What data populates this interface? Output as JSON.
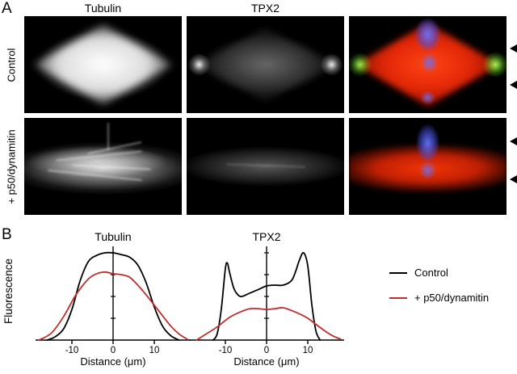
{
  "panel_a": {
    "label": "A",
    "column_titles": [
      "Tubulin",
      "TPX2"
    ],
    "row_labels": [
      "Control",
      "+ p50/dynamitin"
    ]
  },
  "panel_b": {
    "label": "B",
    "ylabel": "Fluorescence",
    "plot_titles": [
      "Tubulin",
      "TPX2"
    ],
    "xlabel": "Distance (μm)",
    "legend": [
      {
        "label": "Control",
        "color": "#000000"
      },
      {
        "label": "+ p50/dynamitin",
        "color": "#c22c2c"
      }
    ]
  },
  "chart_data": [
    {
      "type": "line",
      "title": "Tubulin",
      "xlabel": "Distance (μm)",
      "ylabel": "Fluorescence",
      "xlim": [
        -20,
        20
      ],
      "ylim": [
        0,
        1
      ],
      "x_ticks": [
        -10,
        0,
        10
      ],
      "grid": false,
      "legend_position": "right",
      "series": [
        {
          "name": "Control",
          "color": "#000000",
          "points": [
            [
              -16,
              0
            ],
            [
              -14,
              0.04
            ],
            [
              -12,
              0.13
            ],
            [
              -10,
              0.35
            ],
            [
              -8,
              0.68
            ],
            [
              -6,
              0.9
            ],
            [
              -4,
              0.97
            ],
            [
              -2,
              1.0
            ],
            [
              0,
              1.0
            ],
            [
              2,
              0.98
            ],
            [
              4,
              0.95
            ],
            [
              6,
              0.86
            ],
            [
              8,
              0.66
            ],
            [
              10,
              0.38
            ],
            [
              12,
              0.16
            ],
            [
              14,
              0.05
            ],
            [
              16,
              0
            ]
          ]
        },
        {
          "name": "+ p50/dynamitin",
          "color": "#c22c2c",
          "points": [
            [
              -18,
              0
            ],
            [
              -15,
              0.08
            ],
            [
              -12,
              0.27
            ],
            [
              -9,
              0.52
            ],
            [
              -6,
              0.7
            ],
            [
              -4,
              0.76
            ],
            [
              -2,
              0.78
            ],
            [
              0,
              0.76
            ],
            [
              2,
              0.75
            ],
            [
              4,
              0.72
            ],
            [
              6,
              0.63
            ],
            [
              8,
              0.52
            ],
            [
              10,
              0.4
            ],
            [
              12,
              0.28
            ],
            [
              14,
              0.16
            ],
            [
              16,
              0.07
            ],
            [
              18,
              0.01
            ]
          ]
        }
      ]
    },
    {
      "type": "line",
      "title": "TPX2",
      "xlabel": "Distance (μm)",
      "ylabel": "Fluorescence",
      "xlim": [
        -20,
        20
      ],
      "ylim": [
        0,
        1
      ],
      "x_ticks": [
        -10,
        0,
        10
      ],
      "grid": false,
      "legend_position": "right",
      "series": [
        {
          "name": "Control",
          "color": "#000000",
          "points": [
            [
              -13,
              0
            ],
            [
              -12,
              0.07
            ],
            [
              -11,
              0.35
            ],
            [
              -10,
              0.82
            ],
            [
              -9.5,
              0.88
            ],
            [
              -9,
              0.78
            ],
            [
              -8,
              0.6
            ],
            [
              -7,
              0.52
            ],
            [
              -6,
              0.5
            ],
            [
              -4,
              0.54
            ],
            [
              -2,
              0.58
            ],
            [
              0,
              0.62
            ],
            [
              2,
              0.63
            ],
            [
              4,
              0.63
            ],
            [
              6,
              0.68
            ],
            [
              7,
              0.78
            ],
            [
              8,
              0.92
            ],
            [
              9,
              1.0
            ],
            [
              10,
              0.85
            ],
            [
              11,
              0.4
            ],
            [
              12,
              0.1
            ],
            [
              13,
              0
            ]
          ]
        },
        {
          "name": "+ p50/dynamitin",
          "color": "#c22c2c",
          "points": [
            [
              -17,
              0
            ],
            [
              -15,
              0.06
            ],
            [
              -12,
              0.15
            ],
            [
              -9,
              0.26
            ],
            [
              -6,
              0.33
            ],
            [
              -4,
              0.36
            ],
            [
              -2,
              0.36
            ],
            [
              0,
              0.35
            ],
            [
              2,
              0.36
            ],
            [
              4,
              0.37
            ],
            [
              6,
              0.34
            ],
            [
              8,
              0.3
            ],
            [
              10,
              0.25
            ],
            [
              12,
              0.18
            ],
            [
              14,
              0.11
            ],
            [
              16,
              0.05
            ],
            [
              18,
              0.01
            ]
          ]
        }
      ]
    }
  ]
}
